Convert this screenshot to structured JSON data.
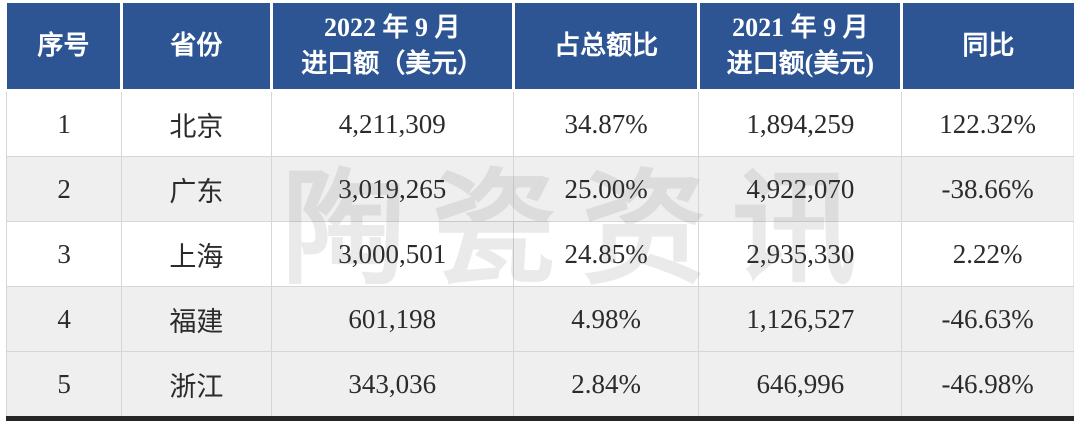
{
  "table": {
    "header": {
      "index": "序号",
      "province": "省份",
      "imports_2022_line1": "2022 年 9 月",
      "imports_2022_line2": "进口额（美元）",
      "share": "占总额比",
      "imports_2021_line1": "2021 年 9 月",
      "imports_2021_line2": "进口额(美元)",
      "yoy": "同比"
    },
    "rows": [
      {
        "index": "1",
        "province": "北京",
        "imports_2022": "4,211,309",
        "share": "34.87%",
        "imports_2021": "1,894,259",
        "yoy": "122.32%"
      },
      {
        "index": "2",
        "province": "广东",
        "imports_2022": "3,019,265",
        "share": "25.00%",
        "imports_2021": "4,922,070",
        "yoy": "-38.66%"
      },
      {
        "index": "3",
        "province": "上海",
        "imports_2022": "3,000,501",
        "share": "24.85%",
        "imports_2021": "2,935,330",
        "yoy": "2.22%"
      },
      {
        "index": "4",
        "province": "福建",
        "imports_2022": "601,198",
        "share": "4.98%",
        "imports_2021": "1,126,527",
        "yoy": "-46.63%"
      },
      {
        "index": "5",
        "province": "浙江",
        "imports_2022": "343,036",
        "share": "2.84%",
        "imports_2021": "646,996",
        "yoy": "-46.98%"
      }
    ]
  },
  "watermark": {
    "text": "陶瓷资讯"
  },
  "colors": {
    "header_bg": "#2d5493",
    "header_text": "#ffffff",
    "row_bg": "#ffffff",
    "row_alt_bg": "#efefef",
    "grid_line": "#d6d6d6",
    "bottom_rule": "#262626",
    "body_text": "#2b2b2b",
    "watermark_text": "#dddddd"
  }
}
